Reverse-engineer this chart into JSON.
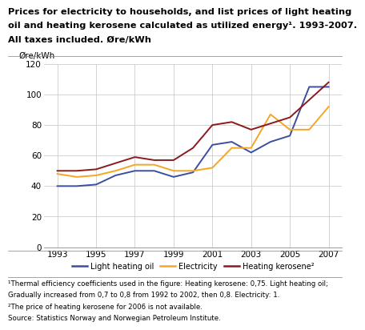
{
  "lho_x": [
    1993,
    1994,
    1995,
    1996,
    1997,
    1998,
    1999,
    2000,
    2001,
    2002,
    2003,
    2004,
    2005,
    2006,
    2007
  ],
  "lho_y": [
    40,
    40,
    41,
    47,
    50,
    50,
    46,
    49,
    67,
    69,
    62,
    69,
    73,
    105,
    105
  ],
  "elec_x": [
    1993,
    1994,
    1995,
    1996,
    1997,
    1998,
    1999,
    2000,
    2001,
    2002,
    2003,
    2004,
    2005,
    2006,
    2007
  ],
  "elec_y": [
    48,
    46,
    47,
    50,
    54,
    54,
    50,
    50,
    52,
    65,
    65,
    87,
    77,
    77,
    92
  ],
  "kero_x": [
    1993,
    1994,
    1995,
    1996,
    1997,
    1998,
    1999,
    2000,
    2001,
    2002,
    2003,
    2004,
    2005,
    2007
  ],
  "kero_y": [
    50,
    50,
    51,
    55,
    59,
    57,
    57,
    65,
    80,
    82,
    77,
    81,
    85,
    108
  ],
  "title_line1": "Prices for electricity to households, and list prices of light heating",
  "title_line2": "oil and heating kerosene calculated as utilized energy¹. 1993-2007.",
  "title_line3": "All taxes included. Øre/kWh",
  "ylabel": "Øre/kWh",
  "ylim": [
    0,
    120
  ],
  "yticks": [
    0,
    20,
    40,
    60,
    80,
    100,
    120
  ],
  "xticks": [
    1993,
    1995,
    1997,
    1999,
    2001,
    2003,
    2005,
    2007
  ],
  "color_oil": "#3b4ea0",
  "color_electricity": "#f5a623",
  "color_kerosene": "#8b1a1a",
  "footnote1": "¹Thermal efficiency coefficients used in the figure: Heating kerosene: 0,75. Light heating oil;",
  "footnote2": "Gradually increased from 0,7 to 0,8 from 1992 to 2002, then 0,8. Electricity: 1.",
  "footnote3": "²The price of heating kerosene for 2006 is not available.",
  "footnote4": "Source: Statistics Norway and Norwegian Petroleum Institute.",
  "legend_oil": "Light heating oil",
  "legend_elec": "Electricity",
  "legend_kero": "Heating kerosene²"
}
